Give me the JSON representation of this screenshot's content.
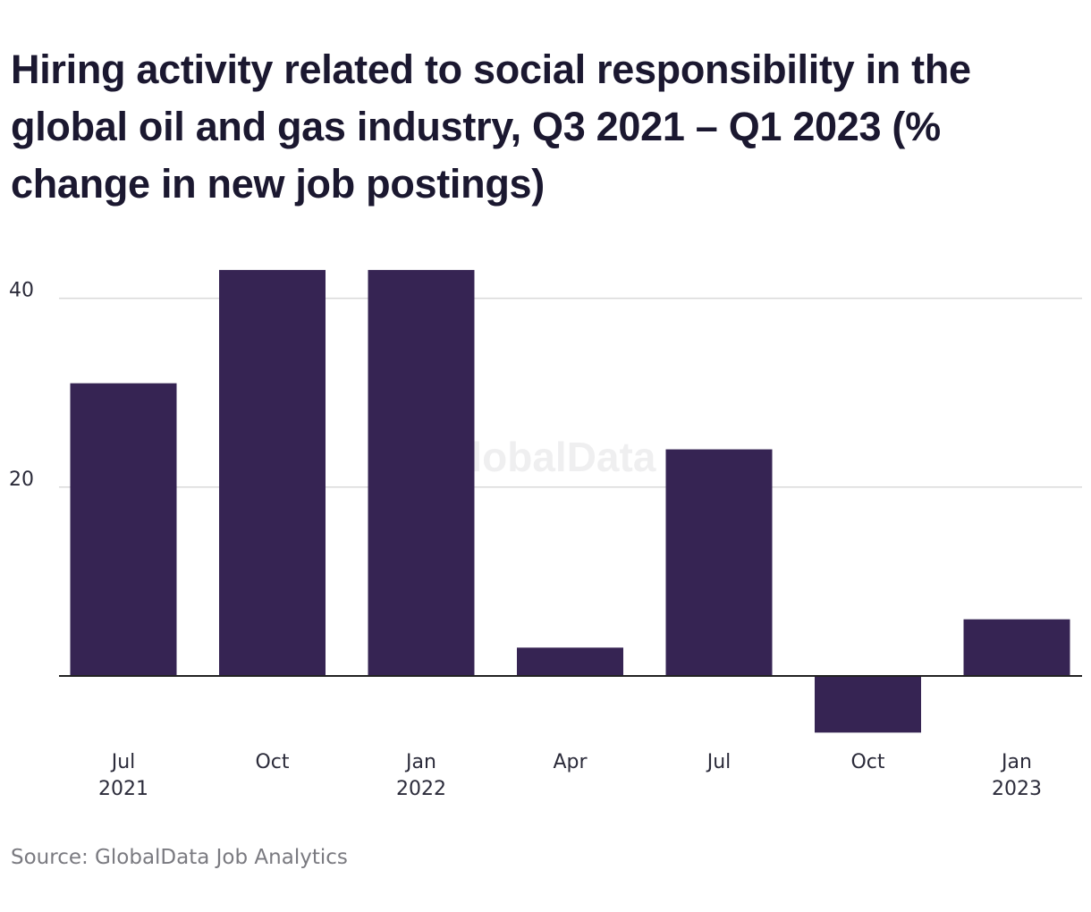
{
  "title": "Hiring activity related to social responsibility in the global oil and gas industry, Q3 2021 – Q1 2023 (% change in new job postings)",
  "source": "Source: GlobalData Job Analytics",
  "watermark": "GlobalData",
  "colors": {
    "bar": "#362453",
    "grid": "#d9d9d9",
    "zero_line": "#222222"
  },
  "chart_data": {
    "type": "bar",
    "title": "Hiring activity related to social responsibility in the global oil and gas industry, Q3 2021 – Q1 2023 (% change in new job postings)",
    "categories": [
      "Jul 2021",
      "Oct",
      "Jan 2022",
      "Apr",
      "Jul",
      "Oct",
      "Jan 2023"
    ],
    "category_labels": [
      [
        "Jul",
        "2021"
      ],
      [
        "Oct",
        ""
      ],
      [
        "Jan",
        "2022"
      ],
      [
        "Apr",
        ""
      ],
      [
        "Jul",
        ""
      ],
      [
        "Oct",
        ""
      ],
      [
        "Jan",
        "2023"
      ]
    ],
    "values": [
      31,
      43,
      43,
      3,
      24,
      -6,
      6
    ],
    "yticks": [
      20,
      40
    ],
    "ylim": [
      -6.5,
      44
    ],
    "xlabel": "",
    "ylabel": "",
    "grid": true,
    "legend": "none"
  }
}
